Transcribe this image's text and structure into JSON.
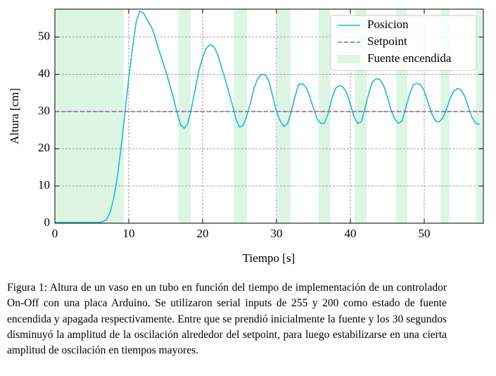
{
  "chart_data": {
    "type": "line",
    "xlabel": "Tiempo [s]",
    "ylabel": "Altura [cm]",
    "xlim": [
      0,
      58
    ],
    "ylim": [
      0,
      57.5
    ],
    "xticks": [
      0,
      10,
      20,
      30,
      40,
      50
    ],
    "yticks": [
      0,
      10,
      20,
      30,
      40,
      50
    ],
    "grid": true,
    "legend": "upper right",
    "spans": {
      "name": "Fuente encendida",
      "color": "#dcf6e3",
      "ranges": [
        [
          0,
          9.3
        ],
        [
          16.7,
          18.4
        ],
        [
          24.2,
          26.0
        ],
        [
          30.1,
          31.9
        ],
        [
          35.7,
          37.3
        ],
        [
          40.6,
          42.2
        ],
        [
          46.2,
          47.7
        ],
        [
          52.2,
          53.4
        ],
        [
          57.0,
          57.9
        ]
      ]
    },
    "series": [
      {
        "name": "Posicion",
        "color": "#17becf",
        "dashed": false,
        "x": [
          0,
          1,
          2,
          3,
          4,
          5,
          6,
          6.5,
          7,
          7.5,
          8,
          8.5,
          9,
          9.5,
          10,
          10.5,
          11,
          11.5,
          12,
          12.5,
          13,
          13.5,
          14,
          15,
          16,
          16.5,
          17,
          17.5,
          18,
          18.5,
          19,
          19.5,
          20,
          20.5,
          21,
          21.5,
          22,
          23,
          24,
          24.5,
          25,
          25.5,
          26,
          26.5,
          27,
          27.5,
          28,
          28.5,
          29,
          29.5,
          30,
          30.5,
          31,
          31.5,
          32,
          32.5,
          33,
          33.5,
          34,
          34.5,
          35,
          35.5,
          36,
          36.5,
          37,
          37.5,
          38,
          38.5,
          39,
          39.5,
          40,
          40.5,
          41,
          41.5,
          42,
          42.5,
          43,
          43.5,
          44,
          44.5,
          45,
          45.5,
          46,
          46.5,
          47,
          47.5,
          48,
          48.5,
          49,
          49.5,
          50,
          50.5,
          51,
          51.5,
          52,
          52.5,
          53,
          53.5,
          54,
          54.5,
          55,
          55.5,
          56,
          56.5,
          57,
          57.5
        ],
        "values": [
          0.2,
          0.2,
          0.2,
          0.2,
          0.2,
          0.2,
          0.2,
          0.4,
          1,
          3,
          7,
          13,
          21,
          30,
          39,
          47,
          54,
          57,
          56.5,
          54.5,
          53,
          50.5,
          47,
          41,
          34,
          30,
          26.5,
          25.5,
          26.8,
          31,
          36,
          41,
          44.5,
          47,
          48,
          47.5,
          45.5,
          39,
          32,
          28,
          25.8,
          26.3,
          29,
          32.5,
          36.5,
          39,
          40,
          39.8,
          38,
          34,
          30,
          27.5,
          26,
          26.8,
          30,
          34,
          37.3,
          37.5,
          36.5,
          34,
          31,
          28,
          26.8,
          26.9,
          29.5,
          33.5,
          36.3,
          37,
          36.6,
          35,
          32,
          28.5,
          26.8,
          27.3,
          31,
          35,
          38,
          38.8,
          38.6,
          37,
          34,
          30.5,
          28,
          26.8,
          27.5,
          31,
          34.5,
          37.2,
          37.6,
          37.2,
          35.5,
          32.5,
          29.5,
          27.5,
          27.2,
          28.2,
          30.5,
          33.5,
          35.5,
          36.2,
          35.8,
          34,
          31,
          28.3,
          26.8,
          26.6
        ]
      },
      {
        "name": "Setpoint",
        "color": "#8e63b5",
        "dashed": true,
        "x": [
          0,
          58
        ],
        "values": [
          30,
          30
        ]
      }
    ]
  },
  "caption": "Figura 1: Altura de un vaso en un tubo en función del tiempo de implementación de un controlador On-Off con una placa Arduino. Se utilizaron serial inputs de 255 y 200 como estado de fuente encendida y apagada respectivamente. Entre que se prendió inicialmente la fuente y los 30 segundos disminuyó la amplitud de la oscilación alrededor del setpoint, para luego estabilizarse en una cierta amplitud de oscilación en tiempos mayores."
}
